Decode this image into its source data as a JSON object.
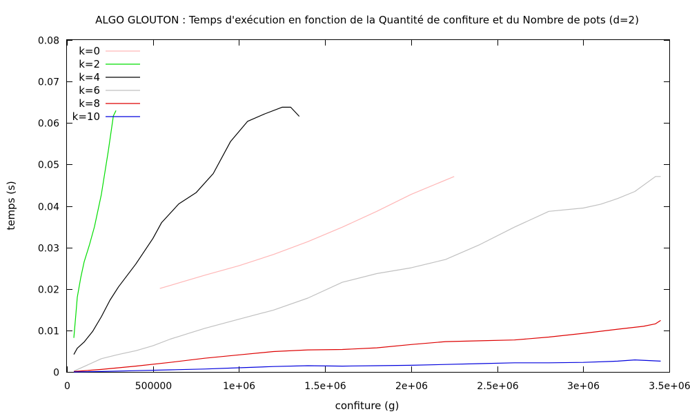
{
  "chart_data": {
    "type": "line",
    "title": "ALGO GLOUTON : Temps d'exécution en fonction de la Quantité de confiture et du Nombre de pots (d=2)",
    "xlabel": "confiture (g)",
    "ylabel": "temps (s)",
    "xlim": [
      0,
      3500000
    ],
    "ylim": [
      0,
      0.08
    ],
    "xticks": [
      0,
      500000,
      1000000,
      1500000,
      2000000,
      2500000,
      3000000,
      3500000
    ],
    "xtick_labels": [
      "0",
      "500000",
      "1e+06",
      "1.5e+06",
      "2e+06",
      "2.5e+06",
      "3e+06",
      "3.5e+06"
    ],
    "yticks": [
      0,
      0.01,
      0.02,
      0.03,
      0.04,
      0.05,
      0.06,
      0.07,
      0.08
    ],
    "ytick_labels": [
      "0",
      "0.01",
      "0.02",
      "0.03",
      "0.04",
      "0.05",
      "0.06",
      "0.07",
      "0.08"
    ],
    "grid": false,
    "legend_position": "top-left",
    "series": [
      {
        "name": "k=0",
        "color": "#ffb6b6",
        "x": [
          540000,
          800000,
          1000000,
          1200000,
          1400000,
          1600000,
          1800000,
          2000000,
          2250000
        ],
        "y": [
          0.0201,
          0.0233,
          0.0256,
          0.0283,
          0.0314,
          0.0349,
          0.0387,
          0.0428,
          0.0471
        ]
      },
      {
        "name": "k=2",
        "color": "#00dd00",
        "x": [
          40000,
          50000,
          60000,
          80000,
          100000,
          130000,
          160000,
          200000,
          240000,
          270000,
          285000
        ],
        "y": [
          0.0082,
          0.013,
          0.018,
          0.0227,
          0.0265,
          0.0305,
          0.035,
          0.0428,
          0.0532,
          0.0617,
          0.063
        ]
      },
      {
        "name": "k=4",
        "color": "#000000",
        "x": [
          40000,
          60000,
          100000,
          150000,
          200000,
          250000,
          300000,
          400000,
          500000,
          550000,
          650000,
          750000,
          850000,
          950000,
          1050000,
          1150000,
          1250000,
          1300000,
          1350000
        ],
        "y": [
          0.0042,
          0.0057,
          0.0072,
          0.0098,
          0.0133,
          0.0173,
          0.0205,
          0.026,
          0.0322,
          0.036,
          0.0405,
          0.0432,
          0.0478,
          0.0555,
          0.0604,
          0.0622,
          0.0638,
          0.0638,
          0.0616
        ]
      },
      {
        "name": "k=6",
        "color": "#c0c0c0",
        "x": [
          40000,
          100000,
          200000,
          300000,
          400000,
          500000,
          600000,
          700000,
          800000,
          1000000,
          1200000,
          1400000,
          1600000,
          1800000,
          2000000,
          2200000,
          2400000,
          2600000,
          2800000,
          3000000,
          3100000,
          3200000,
          3300000,
          3420000,
          3450000
        ],
        "y": [
          0.0002,
          0.0013,
          0.0032,
          0.0042,
          0.0051,
          0.0063,
          0.0079,
          0.0092,
          0.0105,
          0.0127,
          0.0149,
          0.0178,
          0.0216,
          0.0237,
          0.0251,
          0.0271,
          0.0307,
          0.0349,
          0.0387,
          0.0395,
          0.0404,
          0.0418,
          0.0435,
          0.0471,
          0.0471
        ]
      },
      {
        "name": "k=8",
        "color": "#dd0000",
        "x": [
          40000,
          200000,
          400000,
          600000,
          800000,
          1000000,
          1200000,
          1400000,
          1600000,
          1800000,
          2000000,
          2200000,
          2400000,
          2600000,
          2800000,
          3000000,
          3200000,
          3350000,
          3420000,
          3450000
        ],
        "y": [
          0.0001,
          0.0006,
          0.0014,
          0.0023,
          0.0033,
          0.0041,
          0.0049,
          0.0053,
          0.0054,
          0.0058,
          0.0066,
          0.0073,
          0.0075,
          0.0077,
          0.0084,
          0.0093,
          0.0103,
          0.011,
          0.0116,
          0.0124
        ]
      },
      {
        "name": "k=10",
        "color": "#0000dd",
        "x": [
          40000,
          200000,
          400000,
          600000,
          800000,
          1000000,
          1200000,
          1400000,
          1600000,
          1800000,
          2000000,
          2200000,
          2400000,
          2600000,
          2800000,
          3000000,
          3200000,
          3300000,
          3450000
        ],
        "y": [
          0.0,
          0.0001,
          0.0003,
          0.0005,
          0.0007,
          0.001,
          0.0013,
          0.0015,
          0.0014,
          0.0015,
          0.0016,
          0.0018,
          0.002,
          0.0022,
          0.0022,
          0.0023,
          0.0026,
          0.0029,
          0.0026
        ]
      }
    ]
  }
}
